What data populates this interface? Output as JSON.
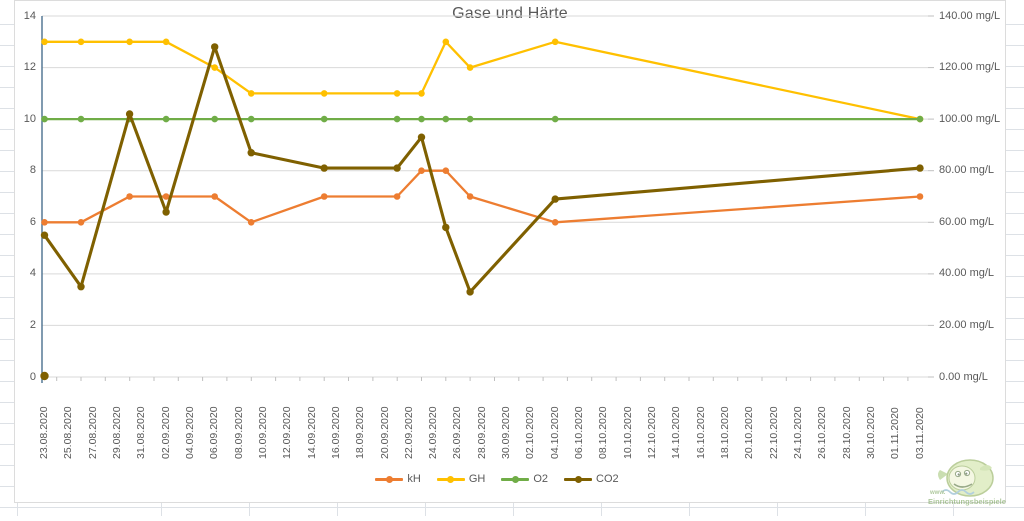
{
  "title": "Gase und Härte",
  "colors": {
    "kH": "#ED7D31",
    "GH": "#FFC000",
    "O2": "#70AD47",
    "CO2": "#7F6000",
    "gridline": "#D9D9D9",
    "axis_line": "#4a708f",
    "tick": "#BFBFBF",
    "axis_text": "#595959"
  },
  "left_axis_tick_labels": [
    "14",
    "12",
    "10",
    "8",
    "6",
    "4",
    "2",
    "0"
  ],
  "right_axis_tick_labels": [
    "140.00 mg/L",
    "120.00 mg/L",
    "100.00 mg/L",
    "80.00 mg/L",
    "60.00 mg/L",
    "40.00 mg/L",
    "20.00 mg/L",
    "0.00 mg/L"
  ],
  "legend": {
    "entries": [
      "kH",
      "GH",
      "O2",
      "CO2"
    ]
  },
  "watermark": {
    "line1": "www.",
    "line2": "Einrichtungsbeispiele"
  },
  "chart_data": {
    "type": "line",
    "title": "Gase und Härte",
    "grid": true,
    "legend_position": "bottom",
    "x_axis": {
      "kind": "date",
      "tick_interval_days": 2,
      "tick_labels": [
        "23.08.2020",
        "25.08.2020",
        "27.08.2020",
        "29.08.2020",
        "31.08.2020",
        "02.09.2020",
        "04.09.2020",
        "06.09.2020",
        "08.09.2020",
        "10.09.2020",
        "12.09.2020",
        "14.09.2020",
        "16.09.2020",
        "18.09.2020",
        "20.09.2020",
        "22.09.2020",
        "24.09.2020",
        "26.09.2020",
        "28.09.2020",
        "30.09.2020",
        "02.10.2020",
        "04.10.2020",
        "06.10.2020",
        "08.10.2020",
        "10.10.2020",
        "12.10.2020",
        "14.10.2020",
        "16.10.2020",
        "18.10.2020",
        "20.10.2020",
        "22.10.2020",
        "24.10.2020",
        "26.10.2020",
        "28.10.2020",
        "30.10.2020",
        "01.11.2020",
        "03.11.2020"
      ]
    },
    "y_axis_left": {
      "min": 0,
      "max": 14,
      "step": 2
    },
    "y_axis_right": {
      "min": 0,
      "max": 140,
      "step": 20,
      "unit": "mg/L"
    },
    "measurement_dates": [
      "23.08.2020",
      "26.08.2020",
      "30.08.2020",
      "02.09.2020",
      "06.09.2020",
      "09.09.2020",
      "15.09.2020",
      "21.09.2020",
      "23.09.2020",
      "25.09.2020",
      "27.09.2020",
      "04.10.2020",
      "03.11.2020"
    ],
    "day_offsets": [
      0,
      3,
      7,
      10,
      14,
      17,
      23,
      29,
      31,
      33,
      35,
      42,
      72
    ],
    "series": [
      {
        "name": "kH",
        "color": "#ED7D31",
        "values": [
          6,
          6,
          7,
          7,
          7,
          6,
          7,
          7,
          8,
          8,
          7,
          6,
          7
        ]
      },
      {
        "name": "GH",
        "color": "#FFC000",
        "values": [
          13,
          13,
          13,
          13,
          12,
          11,
          11,
          11,
          11,
          13,
          12,
          13,
          10
        ]
      },
      {
        "name": "O2",
        "color": "#70AD47",
        "values": [
          10,
          10,
          10,
          10,
          10,
          10,
          10,
          10,
          10,
          10,
          10,
          10,
          10
        ]
      },
      {
        "name": "CO2",
        "color": "#7F6000",
        "values": [
          5.5,
          3.5,
          10.2,
          6.4,
          12.8,
          8.7,
          8.1,
          8.1,
          9.3,
          5.8,
          3.3,
          6.9,
          8.1
        ]
      }
    ],
    "extra_points": [
      {
        "series": "CO2",
        "date": "23.08.2020",
        "value": 0
      }
    ]
  }
}
